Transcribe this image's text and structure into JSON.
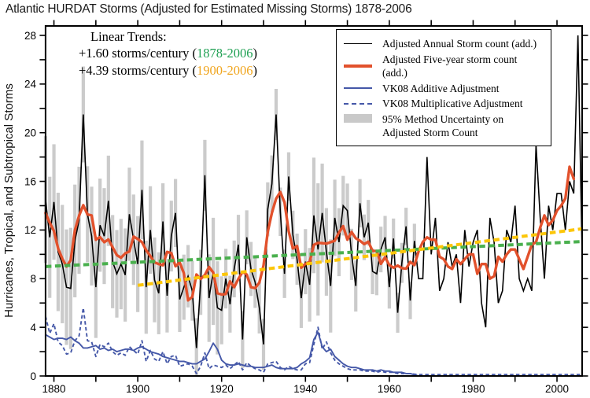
{
  "title": "Atlantic HURDAT Storms (Adjusted for Estimated Missing Storms) 1878-2006",
  "trends": {
    "heading": "Linear Trends:",
    "line1": {
      "prefix": "+1.60 storms/century (",
      "range": "1878-2006",
      "suffix": ")",
      "range_color": "#1fa053"
    },
    "line2": {
      "prefix": "+4.39 storms/century (",
      "range": "1900-2006",
      "suffix": ")",
      "range_color": "#f0a51e"
    }
  },
  "legend": {
    "items": [
      {
        "label": "Adjusted Annual Storm count (add.)",
        "swatch": "line-black"
      },
      {
        "label": "Adjusted Five-year storm count (add.)",
        "swatch": "line-red"
      },
      {
        "label": "VK08 Additive Adjustment",
        "swatch": "line-blue"
      },
      {
        "label": "VK08 Multiplicative Adjustment",
        "swatch": "line-blue-dashed"
      },
      {
        "label": "95% Method Uncertainty on Adjusted Storm Count",
        "swatch": "box-gray"
      }
    ]
  },
  "chart_data": {
    "type": "line",
    "title": "Atlantic HURDAT Storms (Adjusted for Estimated Missing Storms) 1878-2006",
    "xlabel": "",
    "ylabel": "Hurricanes, Tropical, and Subtropical Storms",
    "xlim": [
      1878,
      2006
    ],
    "ylim": [
      0,
      28.8
    ],
    "grid": false,
    "legend_position": "upper right inside",
    "x_ticks_labeled": [
      1880,
      1900,
      1920,
      1940,
      1960,
      1980,
      2000
    ],
    "x_tick_minor_step": 10,
    "y_ticks_labeled": [
      0,
      4,
      8,
      12,
      16,
      20,
      24,
      28
    ],
    "y_tick_minor_step": 2,
    "years_start": 1878,
    "years_end": 2006,
    "series": [
      {
        "name": "Adjusted Annual Storm count (add.)",
        "color": "#000000",
        "style": "solid",
        "width": 1.6,
        "values": [
          14.5,
          11.4,
          14.3,
          10.2,
          9.2,
          7.3,
          7.2,
          11.1,
          12.8,
          21.5,
          13.3,
          11.5,
          7.3,
          12.4,
          11.5,
          14.4,
          9.4,
          8.4,
          9.2,
          8.3,
          13.3,
          11.2,
          9.2,
          15.3,
          7.3,
          12.0,
          7.9,
          6.8,
          12.7,
          6.6,
          11.5,
          13.4,
          6.3,
          7.3,
          8.2,
          7.0,
          2.3,
          7.7,
          16.5,
          6.4,
          8.6,
          5.6,
          5.4,
          8.0,
          5.9,
          8.8,
          10.8,
          3.0,
          11.4,
          8.8,
          7.7,
          5.6,
          2.6,
          13.7,
          15.8,
          21.5,
          13.5,
          8.4,
          16.4,
          11.6,
          9.6,
          6.4,
          9.4,
          7.5,
          13.2,
          10.4,
          13.4,
          10.2,
          7.4,
          13.0,
          11.0,
          14.0,
          13.6,
          10.0,
          7.4,
          14.2,
          11.4,
          12.6,
          8.6,
          8.4,
          10.4,
          11.4,
          7.3,
          11.3,
          5.2,
          9.3,
          12.3,
          6.2,
          11.1,
          8.0,
          8.0,
          18.0,
          10.0,
          13.0,
          7.0,
          8.0,
          11.0,
          9.0,
          10.0,
          6.0,
          12.0,
          9.0,
          11.0,
          12.0,
          6.0,
          4.0,
          13.0,
          11.0,
          6.0,
          7.0,
          12.0,
          11.0,
          14.0,
          8.0,
          7.0,
          8.0,
          7.0,
          19.0,
          13.0,
          8.0,
          14.0,
          12.0,
          15.0,
          15.0,
          12.0,
          16.0,
          15.0,
          28.0,
          10.0
        ]
      },
      {
        "name": "Adjusted Five-year storm count (add.)",
        "color": "#e2512c",
        "style": "solid",
        "width": 3.4,
        "derived": "5-year centered mean of annual series (window clipped at ends)",
        "last_year_drawn": 2004
      },
      {
        "name": "VK08 Additive Adjustment",
        "color": "#4558a8",
        "style": "solid",
        "width": 1.9,
        "values": [
          3.4,
          3.2,
          3.0,
          3.1,
          3.1,
          3.0,
          3.2,
          2.9,
          2.7,
          2.3,
          2.3,
          2.4,
          2.5,
          2.2,
          2.3,
          2.1,
          2.2,
          2.0,
          2.1,
          2.2,
          2.2,
          2.1,
          2.3,
          2.4,
          2.2,
          2.0,
          1.9,
          1.8,
          1.6,
          1.5,
          1.4,
          1.3,
          1.2,
          1.2,
          1.1,
          1.0,
          1.0,
          1.2,
          1.4,
          2.0,
          2.7,
          2.2,
          1.3,
          1.0,
          0.9,
          0.9,
          1.0,
          0.9,
          0.8,
          0.8,
          0.7,
          0.7,
          0.7,
          0.8,
          0.9,
          0.7,
          0.6,
          0.6,
          0.6,
          0.6,
          0.7,
          1.0,
          1.2,
          1.5,
          3.0,
          3.6,
          2.4,
          2.0,
          2.2,
          1.6,
          1.3,
          1.0,
          0.8,
          0.7,
          0.7,
          0.6,
          0.5,
          0.5,
          0.5,
          0.4,
          0.5,
          0.4,
          0.4,
          0.3,
          0.3,
          0.3,
          0.2,
          0.2,
          0.1,
          0,
          0,
          0,
          0,
          0,
          0,
          0,
          0,
          0,
          0,
          0,
          0,
          0,
          0,
          0,
          0,
          0,
          0,
          0,
          0,
          0,
          0,
          0,
          0,
          0,
          0,
          0,
          0,
          0,
          0,
          0,
          0,
          0,
          0,
          0,
          0,
          0,
          0,
          0,
          0
        ]
      },
      {
        "name": "VK08 Multiplicative Adjustment",
        "color": "#4558a8",
        "style": "dashed",
        "width": 1.9,
        "values": [
          4.9,
          3.5,
          4.3,
          2.8,
          2.5,
          1.8,
          1.9,
          2.9,
          3.3,
          5.6,
          2.9,
          2.8,
          1.6,
          2.6,
          2.4,
          2.7,
          2.0,
          1.7,
          1.9,
          1.7,
          2.4,
          2.1,
          1.8,
          2.9,
          1.2,
          2.1,
          1.4,
          1.2,
          2.0,
          1.0,
          1.6,
          1.7,
          0.8,
          0.9,
          1.0,
          0.8,
          0.2,
          0.8,
          1.9,
          0.6,
          0.9,
          0.8,
          0.7,
          0.9,
          0.6,
          0.9,
          1.2,
          0.5,
          1.1,
          0.8,
          0.6,
          0.5,
          0.3,
          1.0,
          1.1,
          1.2,
          0.7,
          0.5,
          0.8,
          0.6,
          0.5,
          0.5,
          1.0,
          1.1,
          2.6,
          4.0,
          2.2,
          2.8,
          1.9,
          1.3,
          1.0,
          0.8,
          0.6,
          0.5,
          0.5,
          0.5,
          0.4,
          0.4,
          0.4,
          0.3,
          0.4,
          0.3,
          0.3,
          0.3,
          0.2,
          0.2,
          0.2,
          0.2,
          0.15,
          0.12,
          0.12,
          0.12,
          0.12,
          0.12,
          0.12,
          0.12,
          0.12,
          0.12,
          0.12,
          0.12,
          0.12,
          0.12,
          0.12,
          0.12,
          0.12,
          0.12,
          0.12,
          0.12,
          0.12,
          0.12,
          0.12,
          0.12,
          0.12,
          0.12,
          0.12,
          0.12,
          0.12,
          0.12,
          0.12,
          0.12,
          0.12,
          0.12,
          0.12,
          0.12,
          0.12,
          0.12,
          0.12,
          0.12,
          0.12
        ]
      }
    ],
    "uncertainty_band": {
      "label": "95% Method Uncertainty on Adjusted Storm Count",
      "color": "#cbcbcb",
      "drawn_as": "per-year vertical bars centered on annual value",
      "halfwidth_rule": {
        "base": 1.3,
        "scale_times_additive": 1.15
      },
      "present_only_where_additive_adjustment_positive": true
    },
    "trend_lines": [
      {
        "label": "+1.60 storms/century",
        "years": [
          1878,
          2006
        ],
        "start_value": 9.0,
        "end_value": 11.05,
        "color": "#4ab04e",
        "style": "dashed",
        "width": 4
      },
      {
        "label": "+4.39 storms/century",
        "years": [
          1900,
          2006
        ],
        "start_value": 7.45,
        "end_value": 12.1,
        "color": "#fcc608",
        "style": "dashed",
        "width": 4
      }
    ],
    "axis_color": "#000000",
    "background": "#ffffff"
  }
}
